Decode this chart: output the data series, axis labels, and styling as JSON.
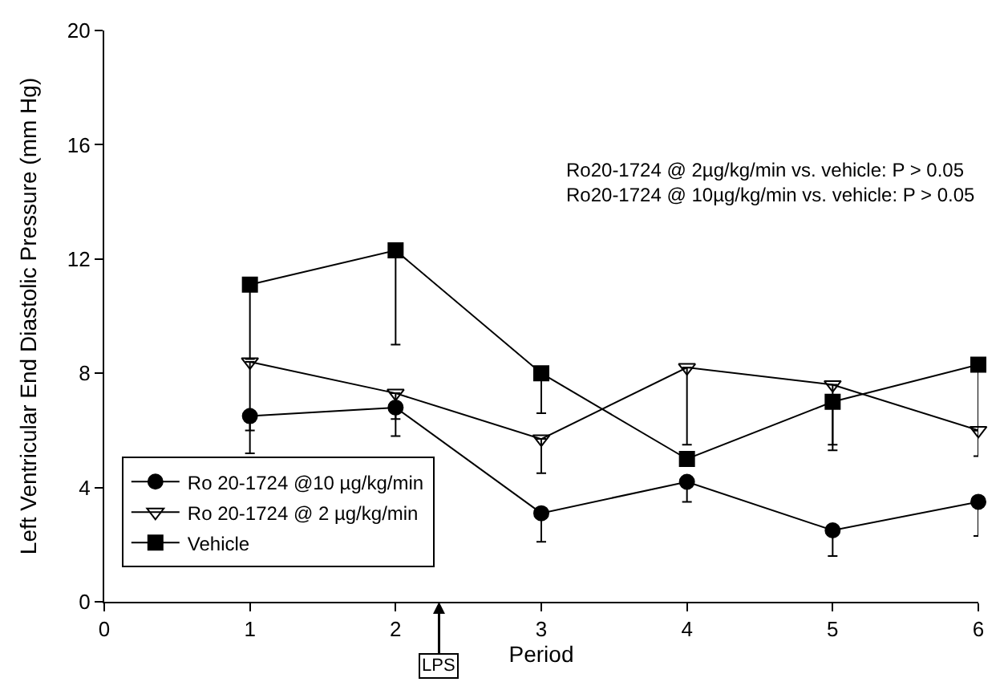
{
  "chart_data": {
    "type": "line",
    "xlabel": "Period",
    "ylabel": "Left Ventricular End Diastolic Pressure (mm Hg)",
    "x": [
      1,
      2,
      3,
      4,
      5,
      6
    ],
    "xlim": [
      0,
      6
    ],
    "xticks": [
      0,
      1,
      2,
      3,
      4,
      5,
      6
    ],
    "ylim": [
      0,
      20
    ],
    "yticks": [
      0,
      4,
      8,
      12,
      16,
      20
    ],
    "series": [
      {
        "name": "Ro 20-1724 @10 µg/kg/min",
        "color": "#000000",
        "marker": "circle",
        "values": [
          6.5,
          6.8,
          3.1,
          4.2,
          2.5,
          3.5
        ],
        "errors": [
          [
            6.0,
            6.5
          ],
          [
            5.8,
            6.8
          ],
          [
            2.1,
            3.1
          ],
          [
            3.5,
            4.2
          ],
          [
            1.6,
            2.5
          ],
          [
            2.3,
            3.5
          ]
        ]
      },
      {
        "name": "Ro 20-1724 @ 2 µg/kg/min",
        "color": "#000000",
        "marker": "triangle",
        "values": [
          8.4,
          7.3,
          5.7,
          8.2,
          7.6,
          6.0
        ],
        "errors": [
          [
            5.2,
            8.4
          ],
          [
            6.4,
            7.3
          ],
          [
            4.5,
            5.7
          ],
          [
            5.5,
            8.2
          ],
          [
            5.5,
            7.6
          ],
          [
            5.1,
            6.0
          ]
        ]
      },
      {
        "name": "Vehicle",
        "color": "#000000",
        "marker": "square",
        "values": [
          11.1,
          12.3,
          8.0,
          5.0,
          7.0,
          8.3
        ],
        "errors": [
          [
            8.5,
            11.1
          ],
          [
            9.0,
            12.3
          ],
          [
            6.6,
            8.0
          ],
          null,
          [
            5.3,
            7.0
          ],
          [
            6.0,
            8.3
          ]
        ]
      }
    ],
    "annotations": [
      "LPS",
      "Ro20-1724 @ 2µg/kg/min vs. vehicle: P > 0.05\nRo20-1724 @ 10µg/kg/min vs. vehicle: P > 0.05"
    ],
    "legend": "bottom left"
  }
}
